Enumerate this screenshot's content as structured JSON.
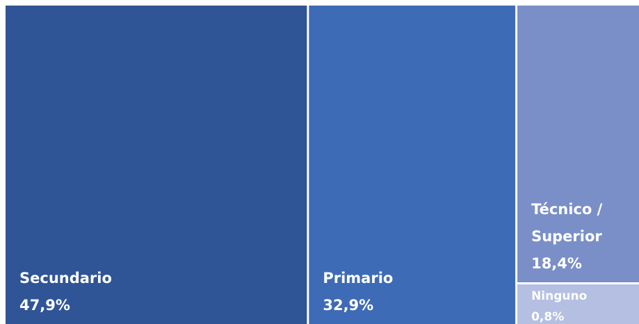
{
  "chart_data": {
    "type": "treemap",
    "categories": [
      "Secundario",
      "Primario",
      "Técnico / Superior",
      "Ninguno"
    ],
    "values": [
      47.9,
      32.9,
      18.4,
      0.8
    ],
    "value_labels": [
      "47,9%",
      "32,9%",
      "18,4%",
      "0,8%"
    ],
    "colors": [
      "#2f5597",
      "#3e6bb5",
      "#7a8fc8",
      "#b4bfe2"
    ]
  }
}
